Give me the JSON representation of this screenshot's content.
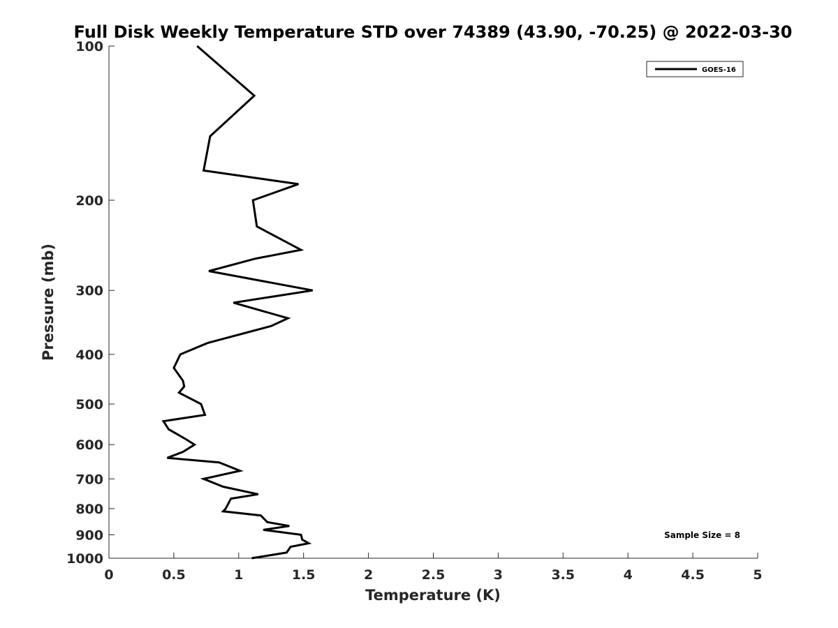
{
  "chart_data": {
    "type": "line",
    "title": "Full Disk Weekly Temperature STD over 74389 (43.90, -70.25) @ 2022-03-30",
    "xlabel": "Temperature (K)",
    "ylabel": "Pressure (mb)",
    "xlim": [
      0,
      5
    ],
    "ylim": [
      100,
      1000
    ],
    "y_scale": "log",
    "y_reversed": true,
    "x_ticks": [
      "0",
      "0.5",
      "1",
      "1.5",
      "2",
      "2.5",
      "3",
      "3.5",
      "4",
      "4.5",
      "5"
    ],
    "y_ticks": [
      "100",
      "200",
      "300",
      "400",
      "500",
      "600",
      "700",
      "800",
      "900",
      "1000"
    ],
    "grid": false,
    "legend_position": "top-right",
    "annotation": "Sample Size = 8",
    "series": [
      {
        "name": "GOES-16",
        "color": "#000000",
        "points": [
          [
            0.68,
            100
          ],
          [
            1.12,
            125
          ],
          [
            0.78,
            150
          ],
          [
            0.73,
            175
          ],
          [
            1.46,
            186
          ],
          [
            1.11,
            200
          ],
          [
            1.14,
            225
          ],
          [
            1.48,
            250
          ],
          [
            1.13,
            260
          ],
          [
            0.77,
            275
          ],
          [
            1.57,
            300
          ],
          [
            0.96,
            317
          ],
          [
            1.38,
            340
          ],
          [
            1.25,
            352
          ],
          [
            0.76,
            380
          ],
          [
            0.55,
            400
          ],
          [
            0.5,
            425
          ],
          [
            0.57,
            450
          ],
          [
            0.58,
            462
          ],
          [
            0.54,
            475
          ],
          [
            0.71,
            500
          ],
          [
            0.74,
            525
          ],
          [
            0.42,
            540
          ],
          [
            0.46,
            560
          ],
          [
            0.59,
            585
          ],
          [
            0.66,
            600
          ],
          [
            0.57,
            620
          ],
          [
            0.45,
            637
          ],
          [
            0.85,
            650
          ],
          [
            1.01,
            675
          ],
          [
            0.73,
            700
          ],
          [
            0.88,
            725
          ],
          [
            1.15,
            750
          ],
          [
            0.94,
            765
          ],
          [
            0.9,
            800
          ],
          [
            0.88,
            810
          ],
          [
            1.17,
            825
          ],
          [
            1.22,
            850
          ],
          [
            1.39,
            865
          ],
          [
            1.19,
            880
          ],
          [
            1.48,
            900
          ],
          [
            1.49,
            920
          ],
          [
            1.54,
            935
          ],
          [
            1.4,
            950
          ],
          [
            1.37,
            975
          ],
          [
            1.1,
            1000
          ]
        ]
      }
    ]
  }
}
